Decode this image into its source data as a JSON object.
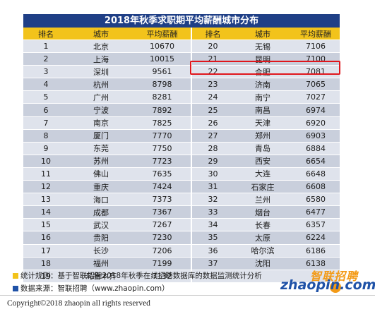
{
  "title": "2018年秋季求职期平均薪酬城市分布",
  "columns": [
    "排名",
    "城市",
    "平均薪酬",
    "排名",
    "城市",
    "平均薪酬"
  ],
  "left_rows": [
    {
      "rank": "1",
      "city": "北京",
      "salary": "10670"
    },
    {
      "rank": "2",
      "city": "上海",
      "salary": "10015"
    },
    {
      "rank": "3",
      "city": "深圳",
      "salary": "9561"
    },
    {
      "rank": "4",
      "city": "杭州",
      "salary": "8798"
    },
    {
      "rank": "5",
      "city": "广州",
      "salary": "8281"
    },
    {
      "rank": "6",
      "city": "宁波",
      "salary": "7892"
    },
    {
      "rank": "7",
      "city": "南京",
      "salary": "7825"
    },
    {
      "rank": "8",
      "city": "厦门",
      "salary": "7770"
    },
    {
      "rank": "9",
      "city": "东莞",
      "salary": "7750"
    },
    {
      "rank": "10",
      "city": "苏州",
      "salary": "7723"
    },
    {
      "rank": "11",
      "city": "佛山",
      "salary": "7635"
    },
    {
      "rank": "12",
      "city": "重庆",
      "salary": "7424"
    },
    {
      "rank": "13",
      "city": "海口",
      "salary": "7373"
    },
    {
      "rank": "14",
      "city": "成都",
      "salary": "7367"
    },
    {
      "rank": "15",
      "city": "武汉",
      "salary": "7267"
    },
    {
      "rank": "16",
      "city": "贵阳",
      "salary": "7230"
    },
    {
      "rank": "17",
      "city": "长沙",
      "salary": "7206"
    },
    {
      "rank": "18",
      "city": "福州",
      "salary": "7199"
    },
    {
      "rank": "19",
      "city": "乌鲁木齐",
      "salary": "7132"
    }
  ],
  "right_rows": [
    {
      "rank": "20",
      "city": "无锡",
      "salary": "7106"
    },
    {
      "rank": "21",
      "city": "昆明",
      "salary": "7100"
    },
    {
      "rank": "22",
      "city": "合肥",
      "salary": "7081"
    },
    {
      "rank": "23",
      "city": "济南",
      "salary": "7065"
    },
    {
      "rank": "24",
      "city": "南宁",
      "salary": "7027"
    },
    {
      "rank": "25",
      "city": "南昌",
      "salary": "6974"
    },
    {
      "rank": "26",
      "city": "天津",
      "salary": "6920"
    },
    {
      "rank": "27",
      "city": "郑州",
      "salary": "6903"
    },
    {
      "rank": "28",
      "city": "青岛",
      "salary": "6884"
    },
    {
      "rank": "29",
      "city": "西安",
      "salary": "6654"
    },
    {
      "rank": "30",
      "city": "大连",
      "salary": "6648"
    },
    {
      "rank": "31",
      "city": "石家庄",
      "salary": "6608"
    },
    {
      "rank": "32",
      "city": "兰州",
      "salary": "6580"
    },
    {
      "rank": "33",
      "city": "烟台",
      "salary": "6477"
    },
    {
      "rank": "34",
      "city": "长春",
      "salary": "6357"
    },
    {
      "rank": "35",
      "city": "太原",
      "salary": "6224"
    },
    {
      "rank": "36",
      "city": "哈尔滨",
      "salary": "6186"
    },
    {
      "rank": "37",
      "city": "沈阳",
      "salary": "6138"
    },
    {
      "rank": "",
      "city": "",
      "salary": ""
    }
  ],
  "highlighted_rank": "22",
  "notes": {
    "rule": "统计规则：基于智联招聘2018年秋季在线招聘数据库的数据监测统计分析",
    "source": "数据来源：智联招聘（www.zhaopin.com）"
  },
  "logo": {
    "cn": "智联招聘",
    "en": "zhaopin.com"
  },
  "copyright": "Copyright©2018 zhaopin all rights reserved",
  "colors": {
    "header_blue": "#1f3f86",
    "header_yellow": "#f2c31b",
    "highlight_red": "#e0161c",
    "brand_orange": "#f39a16",
    "brand_blue": "#1f52a7"
  }
}
